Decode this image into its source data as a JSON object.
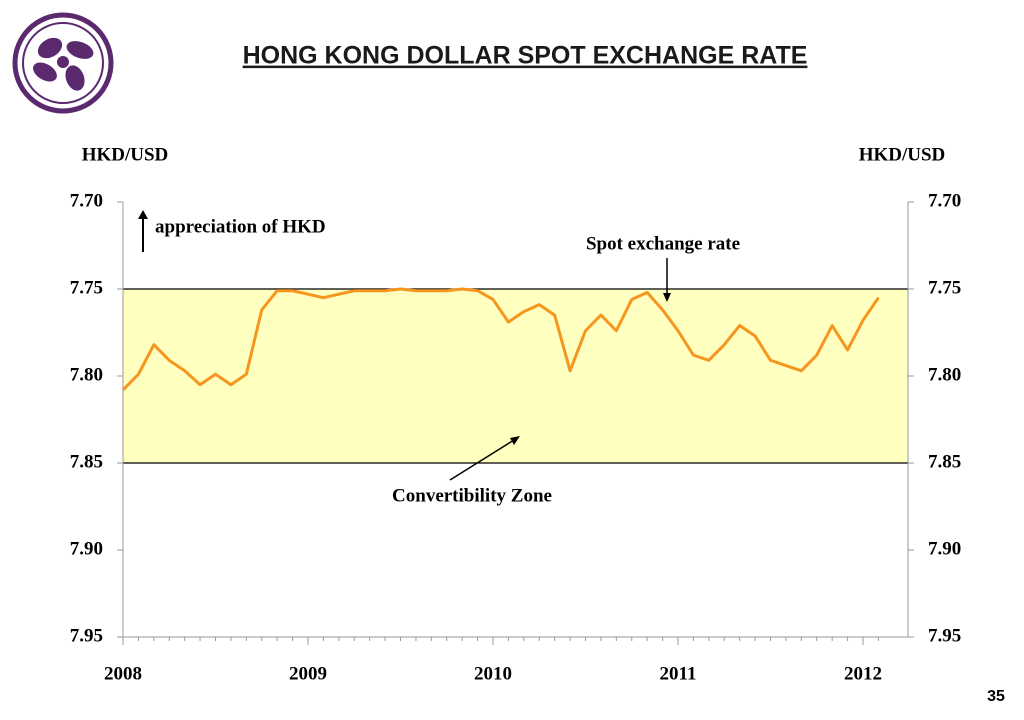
{
  "chart_data": {
    "type": "line",
    "title": "HONG KONG DOLLAR SPOT EXCHANGE RATE",
    "y_label": "HKD/USD",
    "y2_label": "HKD/USD",
    "categories": [
      "2008",
      null,
      null,
      null,
      null,
      null,
      null,
      null,
      null,
      null,
      null,
      null,
      "2009",
      null,
      null,
      null,
      null,
      null,
      null,
      null,
      null,
      null,
      null,
      null,
      "2010",
      null,
      null,
      null,
      null,
      null,
      null,
      null,
      null,
      null,
      null,
      null,
      "2011",
      null,
      null,
      null,
      null,
      null,
      null,
      null,
      null,
      null,
      null,
      null,
      "2012",
      null
    ],
    "series": [
      {
        "name": "Spot exchange rate",
        "color": "#f7961e",
        "values": [
          7.808,
          7.799,
          7.782,
          7.791,
          7.797,
          7.805,
          7.799,
          7.805,
          7.799,
          7.762,
          7.751,
          7.751,
          7.753,
          7.755,
          7.753,
          7.751,
          7.751,
          7.751,
          7.75,
          7.751,
          7.751,
          7.751,
          7.75,
          7.751,
          7.756,
          7.769,
          7.763,
          7.759,
          7.765,
          7.797,
          7.774,
          7.765,
          7.774,
          7.756,
          7.752,
          7.762,
          7.774,
          7.788,
          7.791,
          7.782,
          7.771,
          7.777,
          7.791,
          7.794,
          7.797,
          7.788,
          7.771,
          7.785,
          7.768,
          7.755
        ]
      }
    ],
    "zone": {
      "name": "Convertibility Zone",
      "from": 7.75,
      "to": 7.85,
      "color": "#ffffc0"
    },
    "ylim": [
      7.95,
      7.7
    ],
    "yticks": [
      {
        "value": 7.7,
        "label": "7.70"
      },
      {
        "value": 7.75,
        "label": "7.75"
      },
      {
        "value": 7.8,
        "label": "7.80"
      },
      {
        "value": 7.85,
        "label": "7.85"
      },
      {
        "value": 7.9,
        "label": "7.90"
      },
      {
        "value": 7.95,
        "label": "7.95"
      }
    ],
    "y2lim": [
      7.95,
      7.7
    ],
    "y2ticks": [
      {
        "value": 7.7,
        "label": "7.70"
      },
      {
        "value": 7.75,
        "label": "7.75"
      },
      {
        "value": 7.8,
        "label": "7.80"
      },
      {
        "value": 7.85,
        "label": "7.85"
      },
      {
        "value": 7.9,
        "label": "7.90"
      },
      {
        "value": 7.95,
        "label": "7.95"
      }
    ],
    "annotation": "appreciation of HKD"
  },
  "page_number": "35"
}
